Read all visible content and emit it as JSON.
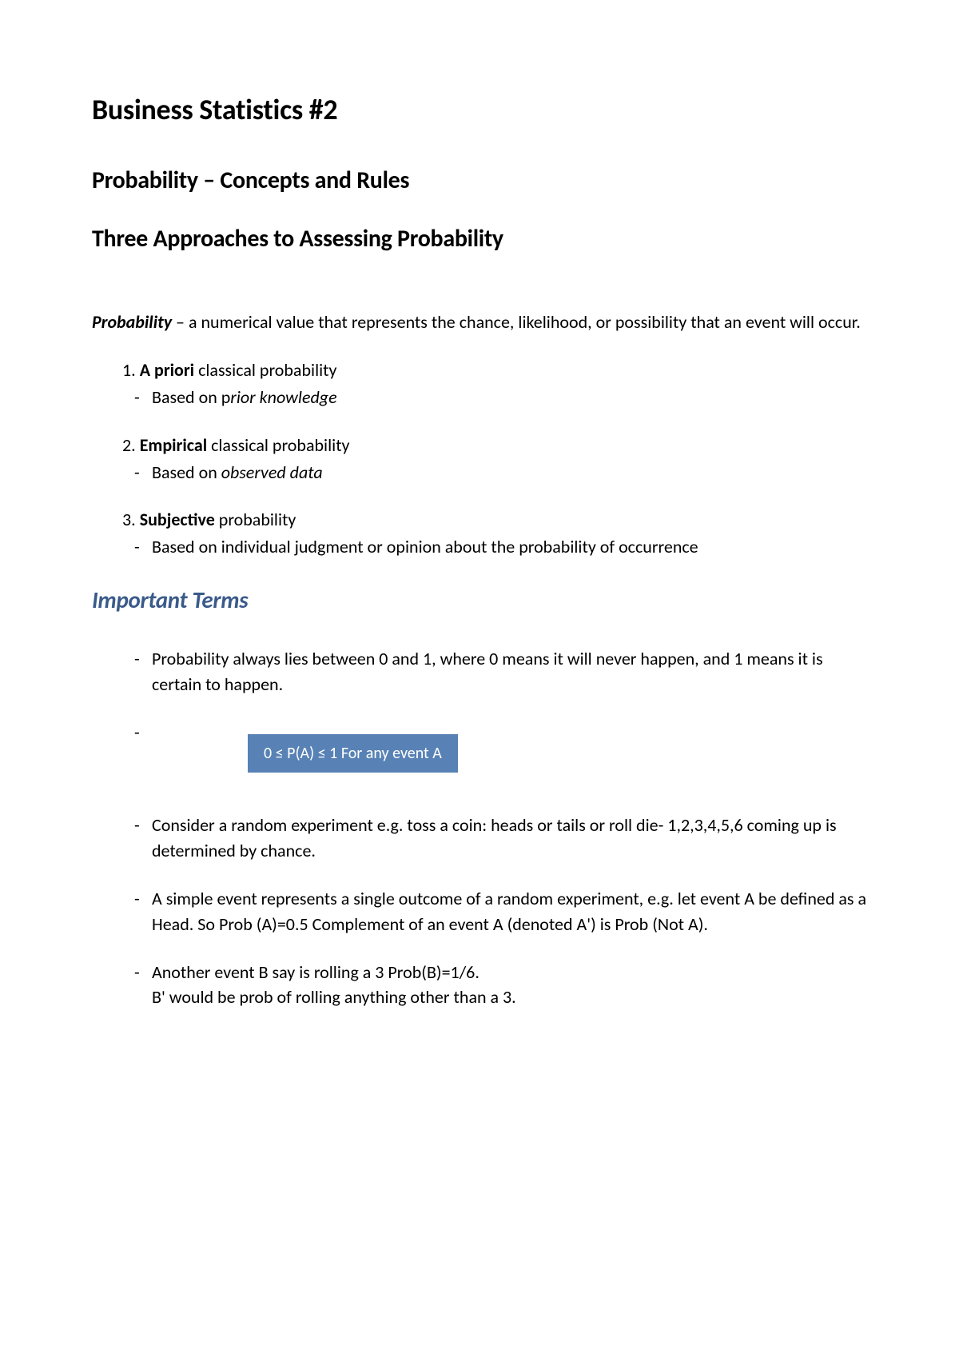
{
  "main_title": "Business Statistics #2",
  "section_title": "Probability – Concepts and Rules",
  "subsection_title": "Three Approaches to Assessing Probability",
  "definition": {
    "term": "Probability",
    "text": " – a numerical value that represents the chance, likelihood, or possibility that an event will occur."
  },
  "approaches": [
    {
      "number": "1.",
      "bold": "A priori",
      "rest": " classical probability",
      "sub_prefix": "Based on p",
      "sub_italic": "rior knowledge"
    },
    {
      "number": "2.",
      "bold": "Empirical",
      "rest": " classical probability",
      "sub_prefix": "Based on ",
      "sub_italic": "observed data"
    },
    {
      "number": "3.",
      "bold": "Subjective",
      "rest": " probability",
      "sub_prefix": "Based on individual judgment or opinion about the probability of occurrence",
      "sub_italic": ""
    }
  ],
  "important_terms_title": "Important Terms",
  "formula": {
    "text": "0 ≤ P(A) ≤ 1 For any event A",
    "background_color": "#5882b5",
    "text_color": "#ffffff"
  },
  "terms": [
    "Probability always lies between 0 and 1, where 0 means it will never happen, and 1 means it is certain to happen.",
    "Consider a random experiment e.g. toss a coin: heads or tails or roll die- 1,2,3,4,5,6 coming up is determined by chance.",
    "A simple event represents a single outcome of a random experiment, e.g. let event A be defined as a Head. So Prob (A)=0.5 Complement of an event A (denoted A') is Prob (Not A).",
    "Another event B say is rolling a 3 Prob(B)=1/6.",
    "B' would be prob of rolling anything other than a 3."
  ],
  "colors": {
    "heading_accent": "#3a5a8a",
    "body_text": "#000000",
    "background": "#ffffff"
  }
}
